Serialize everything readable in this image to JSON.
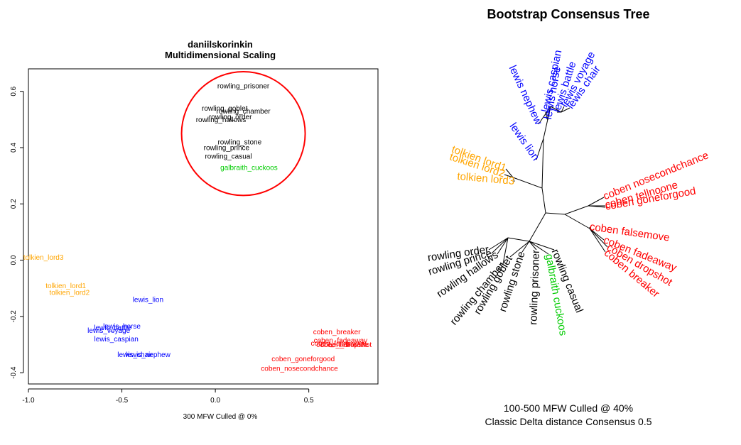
{
  "chart_data": [
    {
      "type": "scatter",
      "title": "daniilskorinkin",
      "subtitle": "Multidimensional Scaling",
      "xlabel": "300 MFW  Culled @ 0%",
      "ylabel": "",
      "xlim": [
        -1.0,
        0.87
      ],
      "ylim": [
        -0.44,
        0.68
      ],
      "xticks": [
        "-1.0",
        "-0.5",
        "0.0",
        "0.5"
      ],
      "xtick_values": [
        -1.0,
        -0.5,
        0.0,
        0.5
      ],
      "yticks": [
        "-0.4",
        "-0.2",
        "0.0",
        "0.2",
        "0.4",
        "0.6"
      ],
      "ytick_values": [
        -0.4,
        -0.2,
        0.0,
        0.2,
        0.4,
        0.6
      ],
      "grid": false,
      "colors": {
        "rowling": "#000000",
        "galbraith": "#00cc00",
        "tolkien": "#ffa500",
        "lewis": "#0000ff",
        "coben": "#ff0000",
        "circle": "#ff0000"
      },
      "highlight_circle": {
        "cx": 0.15,
        "cy": 0.45,
        "r": 0.22
      },
      "points": [
        {
          "label": "rowling_prisoner",
          "x": 0.15,
          "y": 0.62,
          "group": "rowling"
        },
        {
          "label": "rowling_goblet",
          "x": 0.05,
          "y": 0.54,
          "group": "rowling"
        },
        {
          "label": "rowling_chamber",
          "x": 0.15,
          "y": 0.53,
          "group": "rowling"
        },
        {
          "label": "rowling_order",
          "x": 0.08,
          "y": 0.51,
          "group": "rowling"
        },
        {
          "label": "rowling_hallows",
          "x": 0.03,
          "y": 0.5,
          "group": "rowling"
        },
        {
          "label": "rowling_stone",
          "x": 0.13,
          "y": 0.42,
          "group": "rowling"
        },
        {
          "label": "rowling_prince",
          "x": 0.06,
          "y": 0.4,
          "group": "rowling"
        },
        {
          "label": "rowling_casual",
          "x": 0.07,
          "y": 0.37,
          "group": "rowling"
        },
        {
          "label": "galbraith_cuckoos",
          "x": 0.18,
          "y": 0.33,
          "group": "galbraith"
        },
        {
          "label": "tolkien_lord3",
          "x": -0.92,
          "y": 0.01,
          "group": "tolkien"
        },
        {
          "label": "tolkien_lord1",
          "x": -0.8,
          "y": -0.09,
          "group": "tolkien"
        },
        {
          "label": "tolkien_lord2",
          "x": -0.78,
          "y": -0.115,
          "group": "tolkien"
        },
        {
          "label": "lewis_lion",
          "x": -0.36,
          "y": -0.14,
          "group": "lewis"
        },
        {
          "label": "lewis_horse",
          "x": -0.5,
          "y": -0.235,
          "group": "lewis"
        },
        {
          "label": "lewis_battle",
          "x": -0.55,
          "y": -0.24,
          "group": "lewis"
        },
        {
          "label": "lewis_voyage",
          "x": -0.57,
          "y": -0.25,
          "group": "lewis"
        },
        {
          "label": "lewis_caspian",
          "x": -0.53,
          "y": -0.28,
          "group": "lewis"
        },
        {
          "label": "lewis_chair",
          "x": -0.43,
          "y": -0.335,
          "group": "lewis"
        },
        {
          "label": "lewis_nephew",
          "x": -0.36,
          "y": -0.335,
          "group": "lewis"
        },
        {
          "label": "coben_breaker",
          "x": 0.65,
          "y": -0.255,
          "group": "coben"
        },
        {
          "label": "coben_fadeaway",
          "x": 0.67,
          "y": -0.285,
          "group": "coben"
        },
        {
          "label": "coben_falsemove",
          "x": 0.66,
          "y": -0.295,
          "group": "coben"
        },
        {
          "label": "coben_tellnoone",
          "x": 0.68,
          "y": -0.3,
          "group": "coben"
        },
        {
          "label": "coben_dropshot",
          "x": 0.7,
          "y": -0.3,
          "group": "coben"
        },
        {
          "label": "coben_goneforgood",
          "x": 0.47,
          "y": -0.35,
          "group": "coben"
        },
        {
          "label": "coben_nosecondchance",
          "x": 0.45,
          "y": -0.385,
          "group": "coben"
        }
      ]
    },
    {
      "type": "tree",
      "title": "Bootstrap Consensus Tree",
      "caption_lines": [
        "100-500 MFW  Culled @ 40%",
        "Classic Delta distance Consensus 0.5"
      ],
      "colors": {
        "rowling": "#000000",
        "galbraith": "#00cc00",
        "tolkien": "#ffa500",
        "lewis": "#0000ff",
        "coben": "#ff0000"
      },
      "leaves": [
        {
          "label": "lewis caspian",
          "group": "lewis"
        },
        {
          "label": "lewis horse",
          "group": "lewis"
        },
        {
          "label": "lewis battle",
          "group": "lewis"
        },
        {
          "label": "lewis voyage",
          "group": "lewis"
        },
        {
          "label": "lewis chair",
          "group": "lewis"
        },
        {
          "label": "lewis nephew",
          "group": "lewis"
        },
        {
          "label": "lewis lion",
          "group": "lewis"
        },
        {
          "label": "tolkien lord1",
          "group": "tolkien"
        },
        {
          "label": "tolkien lord2",
          "group": "tolkien"
        },
        {
          "label": "tolkien lord3",
          "group": "tolkien"
        },
        {
          "label": "coben nosecondchance",
          "group": "coben"
        },
        {
          "label": "coben tellnoone",
          "group": "coben"
        },
        {
          "label": "coben goneforgood",
          "group": "coben"
        },
        {
          "label": "coben falsemove",
          "group": "coben"
        },
        {
          "label": "coben fadeaway",
          "group": "coben"
        },
        {
          "label": "coben dropshot",
          "group": "coben"
        },
        {
          "label": "coben breaker",
          "group": "coben"
        },
        {
          "label": "rowling casual",
          "group": "rowling"
        },
        {
          "label": "galbraith cuckoos",
          "group": "galbraith"
        },
        {
          "label": "rowling prisoner",
          "group": "rowling"
        },
        {
          "label": "rowling stone",
          "group": "rowling"
        },
        {
          "label": "rowling goblet",
          "group": "rowling"
        },
        {
          "label": "rowling chamber",
          "group": "rowling"
        },
        {
          "label": "rowling hallows",
          "group": "rowling"
        },
        {
          "label": "rowling prince",
          "group": "rowling"
        },
        {
          "label": "rowling order",
          "group": "rowling"
        }
      ]
    }
  ]
}
